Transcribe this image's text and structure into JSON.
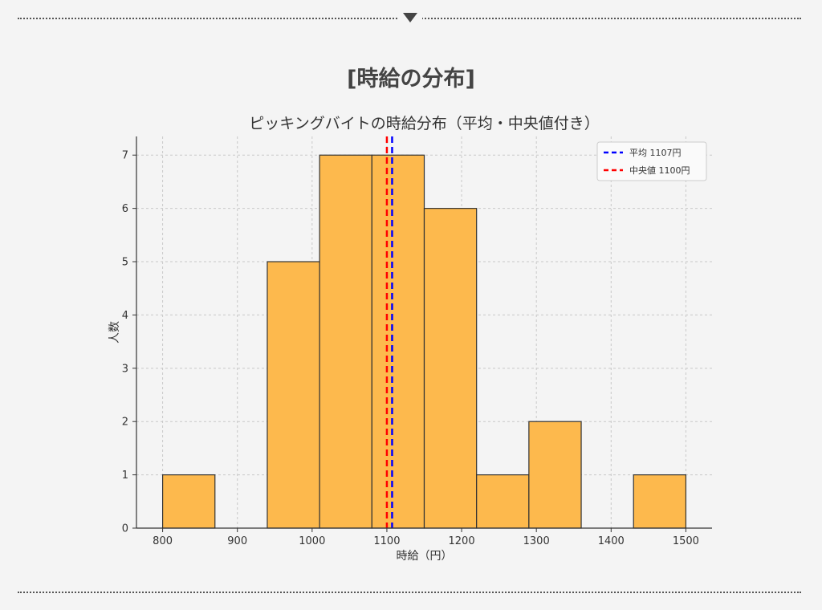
{
  "section": {
    "heading": "[時給の分布]"
  },
  "colors": {
    "bar_fill": "#fdb94d",
    "bar_stroke": "#333333",
    "mean_line": "#0000ff",
    "median_line": "#ff0000",
    "grid": "#c8c8c8",
    "background": "#f4f4f4"
  },
  "chart_data": {
    "type": "bar",
    "title": "ピッキングバイトの時給分布（平均・中央値付き）",
    "xlabel": "時給（円）",
    "ylabel": "人数",
    "xlim": [
      765,
      1535
    ],
    "ylim": [
      0,
      7.35
    ],
    "xticks": [
      800,
      900,
      1000,
      1100,
      1200,
      1300,
      1400,
      1500
    ],
    "yticks": [
      0,
      1,
      2,
      3,
      4,
      5,
      6,
      7
    ],
    "bins": [
      {
        "x0": 800,
        "x1": 870,
        "count": 1
      },
      {
        "x0": 870,
        "x1": 940,
        "count": 0
      },
      {
        "x0": 940,
        "x1": 1010,
        "count": 5
      },
      {
        "x0": 1010,
        "x1": 1080,
        "count": 7
      },
      {
        "x0": 1080,
        "x1": 1150,
        "count": 7
      },
      {
        "x0": 1150,
        "x1": 1220,
        "count": 6
      },
      {
        "x0": 1220,
        "x1": 1290,
        "count": 1
      },
      {
        "x0": 1290,
        "x1": 1360,
        "count": 2
      },
      {
        "x0": 1360,
        "x1": 1430,
        "count": 0
      },
      {
        "x0": 1430,
        "x1": 1500,
        "count": 1
      }
    ],
    "reference_lines": [
      {
        "name": "平均 1107円",
        "value": 1107,
        "color": "#0000ff",
        "style": "dashed"
      },
      {
        "name": "中央値 1100円",
        "value": 1100,
        "color": "#ff0000",
        "style": "dashed"
      }
    ],
    "grid": true,
    "grid_style": "dashed",
    "legend_position": "top-right"
  }
}
